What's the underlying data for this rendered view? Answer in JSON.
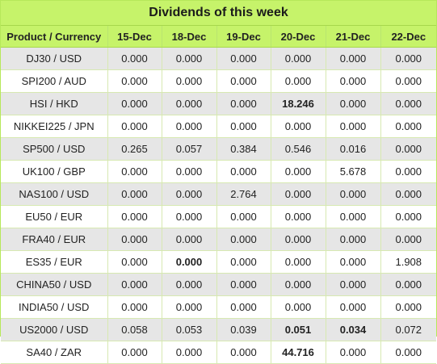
{
  "title": "Dividends of this week",
  "headers": [
    "Product / Currency",
    "15-Dec",
    "18-Dec",
    "19-Dec",
    "20-Dec",
    "21-Dec",
    "22-Dec"
  ],
  "rows": [
    {
      "product": "DJ30 / USD",
      "values": [
        "0.000",
        "0.000",
        "0.000",
        "0.000",
        "0.000",
        "0.000"
      ]
    },
    {
      "product": "SPI200 / AUD",
      "values": [
        "0.000",
        "0.000",
        "0.000",
        "0.000",
        "0.000",
        "0.000"
      ]
    },
    {
      "product": "HSI / HKD",
      "values": [
        "0.000",
        "0.000",
        "0.000",
        "18.246",
        "0.000",
        "0.000"
      ]
    },
    {
      "product": "NIKKEI225 / JPN",
      "values": [
        "0.000",
        "0.000",
        "0.000",
        "0.000",
        "0.000",
        "0.000"
      ]
    },
    {
      "product": "SP500 / USD",
      "values": [
        "0.265",
        "0.057",
        "0.384",
        "0.546",
        "0.016",
        "0.000"
      ]
    },
    {
      "product": "UK100 / GBP",
      "values": [
        "0.000",
        "0.000",
        "0.000",
        "0.000",
        "5.678",
        "0.000"
      ]
    },
    {
      "product": "NAS100 / USD",
      "values": [
        "0.000",
        "0.000",
        "2.764",
        "0.000",
        "0.000",
        "0.000"
      ]
    },
    {
      "product": "EU50 / EUR",
      "values": [
        "0.000",
        "0.000",
        "0.000",
        "0.000",
        "0.000",
        "0.000"
      ]
    },
    {
      "product": "FRA40 / EUR",
      "values": [
        "0.000",
        "0.000",
        "0.000",
        "0.000",
        "0.000",
        "0.000"
      ]
    },
    {
      "product": "ES35 / EUR",
      "values": [
        "0.000",
        "0.000",
        "0.000",
        "0.000",
        "0.000",
        "1.908"
      ]
    },
    {
      "product": "CHINA50 / USD",
      "values": [
        "0.000",
        "0.000",
        "0.000",
        "0.000",
        "0.000",
        "0.000"
      ]
    },
    {
      "product": "INDIA50 / USD",
      "values": [
        "0.000",
        "0.000",
        "0.000",
        "0.000",
        "0.000",
        "0.000"
      ]
    },
    {
      "product": "US2000 / USD",
      "values": [
        "0.058",
        "0.053",
        "0.039",
        "0.051",
        "0.034",
        "0.072"
      ]
    },
    {
      "product": "SA40 / ZAR",
      "values": [
        "0.000",
        "0.000",
        "0.000",
        "44.716",
        "0.000",
        "0.000"
      ]
    }
  ]
}
